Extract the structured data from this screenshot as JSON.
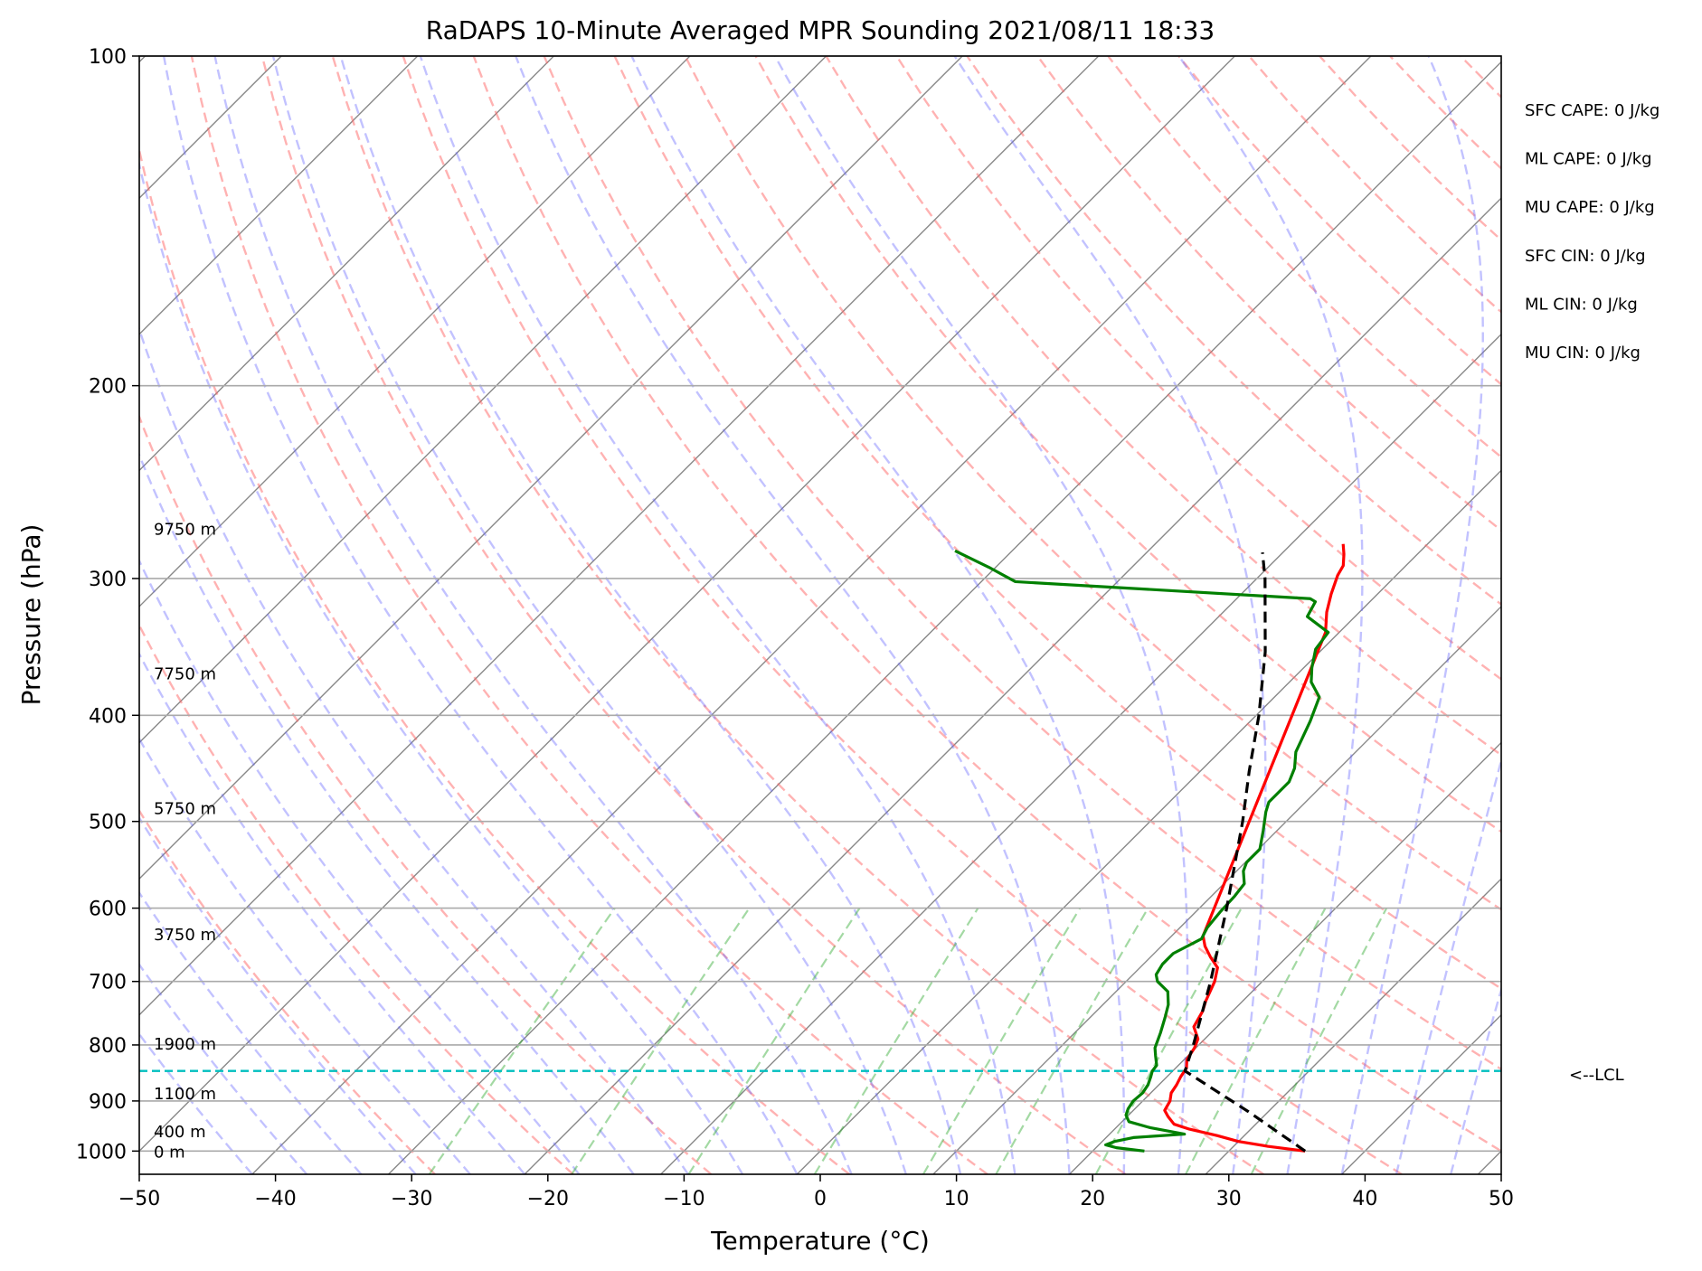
{
  "chart_data": {
    "type": "line",
    "title": "RaDAPS 10-Minute Averaged MPR Sounding 2021/08/11 18:33",
    "xlabel": "Temperature (°C)",
    "ylabel": "Pressure (hPa)",
    "xlim": [
      -50,
      50
    ],
    "ylim": [
      1050,
      100
    ],
    "y_scale": "log",
    "x_ticks": [
      {
        "value": -50,
        "label": "−50"
      },
      {
        "value": -40,
        "label": "−40"
      },
      {
        "value": -30,
        "label": "−30"
      },
      {
        "value": -20,
        "label": "−20"
      },
      {
        "value": -10,
        "label": "−10"
      },
      {
        "value": 0,
        "label": "0"
      },
      {
        "value": 10,
        "label": "10"
      },
      {
        "value": 20,
        "label": "20"
      },
      {
        "value": 30,
        "label": "30"
      },
      {
        "value": 40,
        "label": "40"
      },
      {
        "value": 50,
        "label": "50"
      }
    ],
    "y_ticks": [
      {
        "value": 100,
        "label": "100"
      },
      {
        "value": 200,
        "label": "200"
      },
      {
        "value": 300,
        "label": "300"
      },
      {
        "value": 400,
        "label": "400"
      },
      {
        "value": 500,
        "label": "500"
      },
      {
        "value": 600,
        "label": "600"
      },
      {
        "value": 700,
        "label": "700"
      },
      {
        "value": 800,
        "label": "800"
      },
      {
        "value": 900,
        "label": "900"
      },
      {
        "value": 1000,
        "label": "1000"
      }
    ],
    "grid": true,
    "skew_t": true,
    "temperature_color": "#ff0000",
    "dewpoint_color": "#008000",
    "parcel_color": "#000000",
    "lcl_color": "#00bfbf",
    "dry_adiabat_color": "#ff6666",
    "moist_adiabat_color": "#6666ff",
    "mixing_ratio_color": "#33aa33",
    "isotherm_color": "#888888",
    "temperature": [
      {
        "p": 1000,
        "t": 35.6
      },
      {
        "p": 990,
        "t": 32.5
      },
      {
        "p": 980,
        "t": 30.0
      },
      {
        "p": 968,
        "t": 28.0
      },
      {
        "p": 955,
        "t": 25.5
      },
      {
        "p": 945,
        "t": 24.0
      },
      {
        "p": 930,
        "t": 23.0
      },
      {
        "p": 918,
        "t": 22.3
      },
      {
        "p": 900,
        "t": 22.0
      },
      {
        "p": 885,
        "t": 21.5
      },
      {
        "p": 870,
        "t": 21.3
      },
      {
        "p": 855,
        "t": 21.0
      },
      {
        "p": 840,
        "t": 20.8
      },
      {
        "p": 825,
        "t": 20.2
      },
      {
        "p": 805,
        "t": 19.9
      },
      {
        "p": 790,
        "t": 19.5
      },
      {
        "p": 770,
        "t": 18.3
      },
      {
        "p": 745,
        "t": 17.8
      },
      {
        "p": 730,
        "t": 17.3
      },
      {
        "p": 700,
        "t": 16.5
      },
      {
        "p": 680,
        "t": 15.7
      },
      {
        "p": 665,
        "t": 14.4
      },
      {
        "p": 650,
        "t": 13.2
      },
      {
        "p": 636,
        "t": 12.3
      },
      {
        "p": 336,
        "t": -1.0
      },
      {
        "p": 322,
        "t": -2.4
      },
      {
        "p": 310,
        "t": -3.4
      },
      {
        "p": 298,
        "t": -4.3
      },
      {
        "p": 292,
        "t": -4.6
      },
      {
        "p": 285,
        "t": -5.4
      },
      {
        "p": 279,
        "t": -6.2
      }
    ],
    "dewpoint": [
      {
        "p": 1000,
        "t": 23.8
      },
      {
        "p": 993,
        "t": 21.5
      },
      {
        "p": 987,
        "t": 20.5
      },
      {
        "p": 980,
        "t": 20.9
      },
      {
        "p": 972,
        "t": 22.0
      },
      {
        "p": 965,
        "t": 25.5
      },
      {
        "p": 952,
        "t": 22.5
      },
      {
        "p": 940,
        "t": 20.5
      },
      {
        "p": 927,
        "t": 19.8
      },
      {
        "p": 915,
        "t": 19.5
      },
      {
        "p": 900,
        "t": 19.3
      },
      {
        "p": 885,
        "t": 19.4
      },
      {
        "p": 870,
        "t": 19.2
      },
      {
        "p": 855,
        "t": 18.8
      },
      {
        "p": 845,
        "t": 18.5
      },
      {
        "p": 835,
        "t": 18.4
      },
      {
        "p": 818,
        "t": 17.6
      },
      {
        "p": 805,
        "t": 17.0
      },
      {
        "p": 780,
        "t": 16.3
      },
      {
        "p": 755,
        "t": 15.5
      },
      {
        "p": 735,
        "t": 14.8
      },
      {
        "p": 715,
        "t": 13.8
      },
      {
        "p": 700,
        "t": 12.3
      },
      {
        "p": 690,
        "t": 11.7
      },
      {
        "p": 675,
        "t": 11.4
      },
      {
        "p": 660,
        "t": 11.4
      },
      {
        "p": 640,
        "t": 12.4
      },
      {
        "p": 625,
        "t": 12.0
      },
      {
        "p": 605,
        "t": 11.8
      },
      {
        "p": 585,
        "t": 11.7
      },
      {
        "p": 570,
        "t": 11.5
      },
      {
        "p": 555,
        "t": 10.5
      },
      {
        "p": 545,
        "t": 10.1
      },
      {
        "p": 530,
        "t": 10.1
      },
      {
        "p": 510,
        "t": 9.0
      },
      {
        "p": 490,
        "t": 7.8
      },
      {
        "p": 480,
        "t": 7.3
      },
      {
        "p": 460,
        "t": 7.3
      },
      {
        "p": 447,
        "t": 6.7
      },
      {
        "p": 432,
        "t": 5.6
      },
      {
        "p": 405,
        "t": 4.4
      },
      {
        "p": 385,
        "t": 3.3
      },
      {
        "p": 373,
        "t": 1.6
      },
      {
        "p": 362,
        "t": 0.6
      },
      {
        "p": 348,
        "t": -0.5
      },
      {
        "p": 336,
        "t": -0.8
      },
      {
        "p": 325,
        "t": -3.5
      },
      {
        "p": 315,
        "t": -4.0
      },
      {
        "p": 313,
        "t": -4.6
      },
      {
        "p": 302,
        "t": -27.5
      },
      {
        "p": 293,
        "t": -30.5
      },
      {
        "p": 283,
        "t": -34.2
      }
    ],
    "parcel": [
      {
        "p": 1000,
        "t": 35.6
      },
      {
        "p": 920,
        "t": 28.5
      },
      {
        "p": 845,
        "t": 20.9
      },
      {
        "p": 800,
        "t": 19.6
      },
      {
        "p": 700,
        "t": 16.2
      },
      {
        "p": 600,
        "t": 12.0
      },
      {
        "p": 500,
        "t": 6.8
      },
      {
        "p": 450,
        "t": 3.6
      },
      {
        "p": 400,
        "t": 0.2
      },
      {
        "p": 350,
        "t": -4.0
      },
      {
        "p": 300,
        "t": -9.4
      },
      {
        "p": 284,
        "t": -11.5
      }
    ],
    "lcl_pressure": 845,
    "lcl_label": "<--LCL",
    "height_labels": [
      {
        "p": 1000,
        "label": "0 m"
      },
      {
        "p": 958,
        "label": "400 m"
      },
      {
        "p": 885,
        "label": "1100 m"
      },
      {
        "p": 797,
        "label": "1900 m"
      },
      {
        "p": 633,
        "label": "3750 m"
      },
      {
        "p": 486,
        "label": "5750 m"
      },
      {
        "p": 366,
        "label": "7750 m"
      },
      {
        "p": 270,
        "label": "9750 m"
      }
    ],
    "stats": [
      "SFC CAPE: 0 J/kg",
      "ML CAPE: 0 J/kg",
      "MU CAPE: 0 J/kg",
      "SFC CIN: 0 J/kg",
      "ML CIN: 0 J/kg",
      "MU CIN: 0 J/kg"
    ]
  }
}
